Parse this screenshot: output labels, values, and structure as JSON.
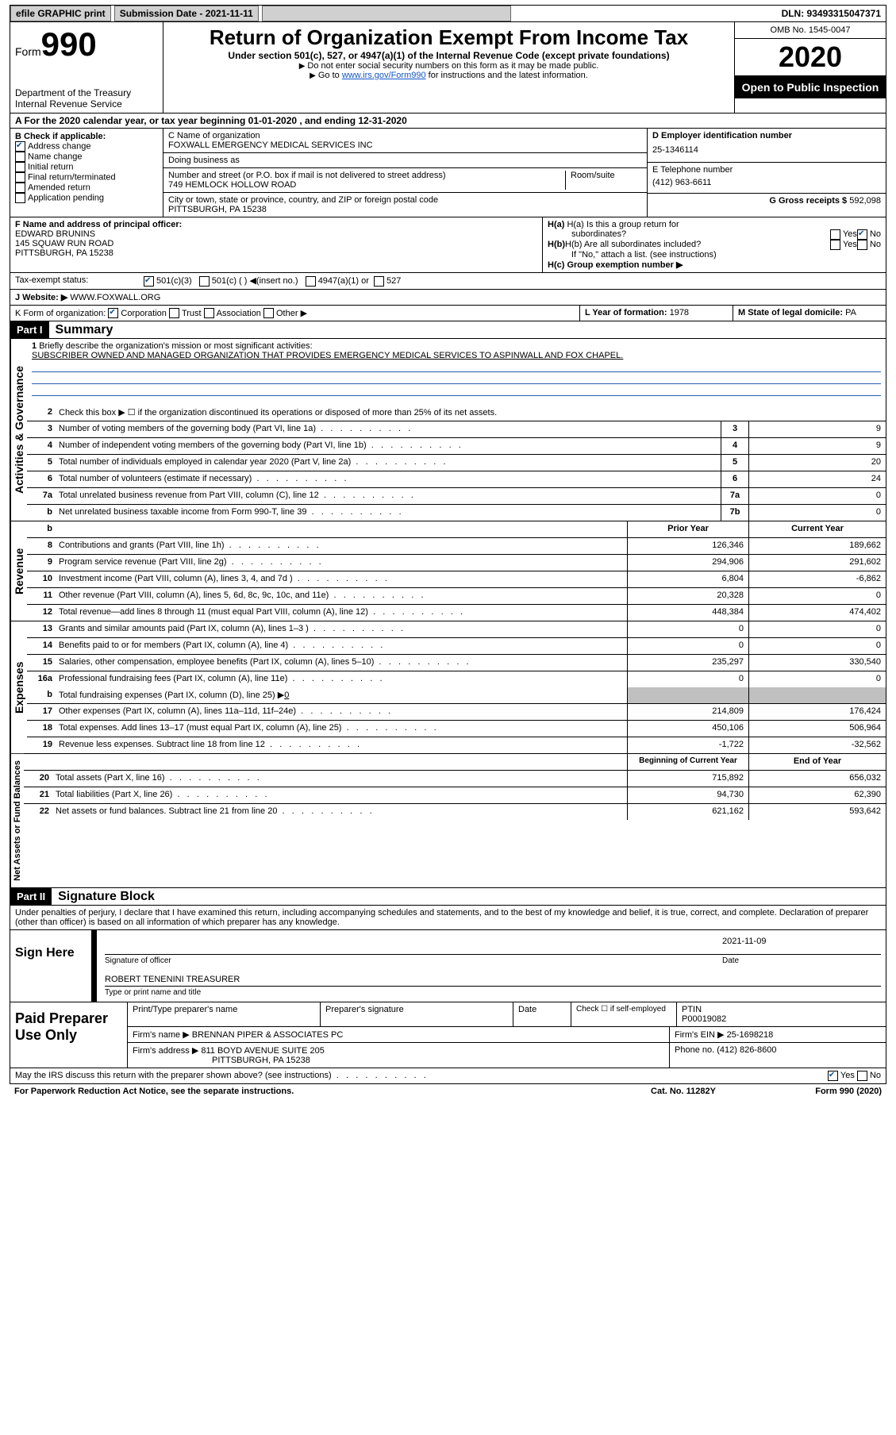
{
  "topbar": {
    "efile": "efile GRAPHIC print",
    "submission": "Submission Date - 2021-11-11",
    "dln": "DLN: 93493315047371"
  },
  "header": {
    "form_prefix": "Form",
    "form_num": "990",
    "dept": "Department of the Treasury\nInternal Revenue Service",
    "title": "Return of Organization Exempt From Income Tax",
    "subtitle": "Under section 501(c), 527, or 4947(a)(1) of the Internal Revenue Code (except private foundations)",
    "note1": "Do not enter social security numbers on this form as it may be made public.",
    "note2_prefix": "Go to ",
    "note2_link": "www.irs.gov/Form990",
    "note2_suffix": " for instructions and the latest information.",
    "omb": "OMB No. 1545-0047",
    "year": "2020",
    "inspection": "Open to Public Inspection"
  },
  "sectionA": "A For the 2020 calendar year, or tax year beginning 01-01-2020    , and ending 12-31-2020",
  "boxB": {
    "label": "B Check if applicable:",
    "items": [
      {
        "label": "Address change",
        "checked": true
      },
      {
        "label": "Name change",
        "checked": false
      },
      {
        "label": "Initial return",
        "checked": false
      },
      {
        "label": "Final return/terminated",
        "checked": false
      },
      {
        "label": "Amended return",
        "checked": false
      },
      {
        "label": "Application pending",
        "checked": false
      }
    ]
  },
  "boxC": {
    "name_label": "C Name of organization",
    "name_value": "FOXWALL EMERGENCY MEDICAL SERVICES INC",
    "dba_label": "Doing business as",
    "dba_value": "",
    "street_label": "Number and street (or P.O. box if mail is not delivered to street address)",
    "room_label": "Room/suite",
    "street_value": "749 HEMLOCK HOLLOW ROAD",
    "city_label": "City or town, state or province, country, and ZIP or foreign postal code",
    "city_value": "PITTSBURGH, PA  15238"
  },
  "boxD": {
    "label": "D Employer identification number",
    "value": "25-1346114"
  },
  "boxE": {
    "label": "E Telephone number",
    "value": "(412) 963-6611"
  },
  "boxG": {
    "label": "G Gross receipts $",
    "value": "592,098"
  },
  "boxF": {
    "label": "F Name and address of principal officer:",
    "name": "EDWARD BRUNINS",
    "addr1": "145 SQUAW RUN ROAD",
    "addr2": "PITTSBURGH, PA  15238"
  },
  "boxH": {
    "a_label": "H(a)  Is this a group return for",
    "a_label2": "subordinates?",
    "a_yes": "Yes",
    "a_no": "No",
    "b_label": "H(b)  Are all subordinates included?",
    "b_yes": "Yes",
    "b_no": "No",
    "b_note": "If \"No,\" attach a list. (see instructions)",
    "c_label": "H(c)  Group exemption number ▶"
  },
  "taxExempt": {
    "label": "Tax-exempt status:",
    "c3": "501(c)(3)",
    "c_other": "501(c) (  ) ◀(insert no.)",
    "a4947": "4947(a)(1) or",
    "s527": "527"
  },
  "boxJ": {
    "label": "J    Website: ▶",
    "value": "WWW.FOXWALL.ORG"
  },
  "boxK": {
    "label": "K Form of organization:",
    "corp": "Corporation",
    "trust": "Trust",
    "assoc": "Association",
    "other": "Other ▶"
  },
  "boxL": {
    "label": "L Year of formation:",
    "value": "1978"
  },
  "boxM": {
    "label": "M State of legal domicile:",
    "value": "PA"
  },
  "part1": {
    "hdr": "Part I",
    "title": "Summary"
  },
  "governance": {
    "label": "Activities & Governance",
    "l1": {
      "num": "1",
      "txt": "Briefly describe the organization's mission or most significant activities:",
      "val": "SUBSCRIBER OWNED AND MANAGED ORGANIZATION THAT PROVIDES EMERGENCY MEDICAL SERVICES TO ASPINWALL AND FOX CHAPEL."
    },
    "l2": {
      "num": "2",
      "txt": "Check this box ▶ ☐  if the organization discontinued its operations or disposed of more than 25% of its net assets."
    },
    "rows": [
      {
        "num": "3",
        "txt": "Number of voting members of the governing body (Part VI, line 1a)",
        "box": "3",
        "val": "9"
      },
      {
        "num": "4",
        "txt": "Number of independent voting members of the governing body (Part VI, line 1b)",
        "box": "4",
        "val": "9"
      },
      {
        "num": "5",
        "txt": "Total number of individuals employed in calendar year 2020 (Part V, line 2a)",
        "box": "5",
        "val": "20"
      },
      {
        "num": "6",
        "txt": "Total number of volunteers (estimate if necessary)",
        "box": "6",
        "val": "24"
      },
      {
        "num": "7a",
        "txt": "Total unrelated business revenue from Part VIII, column (C), line 12",
        "box": "7a",
        "val": "0"
      },
      {
        "num": "b",
        "txt": "Net unrelated business taxable income from Form 990-T, line 39",
        "box": "7b",
        "val": "0"
      }
    ]
  },
  "revenue": {
    "label": "Revenue",
    "header": {
      "prior": "Prior Year",
      "current": "Current Year"
    },
    "rows": [
      {
        "num": "8",
        "txt": "Contributions and grants (Part VIII, line 1h)",
        "prior": "126,346",
        "current": "189,662"
      },
      {
        "num": "9",
        "txt": "Program service revenue (Part VIII, line 2g)",
        "prior": "294,906",
        "current": "291,602"
      },
      {
        "num": "10",
        "txt": "Investment income (Part VIII, column (A), lines 3, 4, and 7d )",
        "prior": "6,804",
        "current": "-6,862"
      },
      {
        "num": "11",
        "txt": "Other revenue (Part VIII, column (A), lines 5, 6d, 8c, 9c, 10c, and 11e)",
        "prior": "20,328",
        "current": "0"
      },
      {
        "num": "12",
        "txt": "Total revenue—add lines 8 through 11 (must equal Part VIII, column (A), line 12)",
        "prior": "448,384",
        "current": "474,402"
      }
    ]
  },
  "expenses": {
    "label": "Expenses",
    "rows": [
      {
        "num": "13",
        "txt": "Grants and similar amounts paid (Part IX, column (A), lines 1–3 )",
        "prior": "0",
        "current": "0"
      },
      {
        "num": "14",
        "txt": "Benefits paid to or for members (Part IX, column (A), line 4)",
        "prior": "0",
        "current": "0"
      },
      {
        "num": "15",
        "txt": "Salaries, other compensation, employee benefits (Part IX, column (A), lines 5–10)",
        "prior": "235,297",
        "current": "330,540"
      },
      {
        "num": "16a",
        "txt": "Professional fundraising fees (Part IX, column (A), line 11e)",
        "prior": "0",
        "current": "0"
      }
    ],
    "l16b": {
      "num": "b",
      "txt": "Total fundraising expenses (Part IX, column (D), line 25) ▶",
      "val": "0"
    },
    "rows2": [
      {
        "num": "17",
        "txt": "Other expenses (Part IX, column (A), lines 11a–11d, 11f–24e)",
        "prior": "214,809",
        "current": "176,424"
      },
      {
        "num": "18",
        "txt": "Total expenses. Add lines 13–17 (must equal Part IX, column (A), line 25)",
        "prior": "450,106",
        "current": "506,964"
      },
      {
        "num": "19",
        "txt": "Revenue less expenses. Subtract line 18 from line 12",
        "prior": "-1,722",
        "current": "-32,562"
      }
    ]
  },
  "netassets": {
    "label": "Net Assets or Fund Balances",
    "header": {
      "begin": "Beginning of Current Year",
      "end": "End of Year"
    },
    "rows": [
      {
        "num": "20",
        "txt": "Total assets (Part X, line 16)",
        "begin": "715,892",
        "end": "656,032"
      },
      {
        "num": "21",
        "txt": "Total liabilities (Part X, line 26)",
        "begin": "94,730",
        "end": "62,390"
      },
      {
        "num": "22",
        "txt": "Net assets or fund balances. Subtract line 21 from line 20",
        "begin": "621,162",
        "end": "593,642"
      }
    ]
  },
  "part2": {
    "hdr": "Part II",
    "title": "Signature Block",
    "penalty": "Under penalties of perjury, I declare that I have examined this return, including accompanying schedules and statements, and to the best of my knowledge and belief, it is true, correct, and complete. Declaration of preparer (other than officer) is based on all information of which preparer has any knowledge."
  },
  "sign": {
    "left": "Sign Here",
    "officer_sig": "Signature of officer",
    "date": "2021-11-09",
    "date_label": "Date",
    "officer_name": "ROBERT TENENINI TREASURER",
    "type_label": "Type or print name and title"
  },
  "prep": {
    "left": "Paid Preparer Use Only",
    "h_name": "Print/Type preparer's name",
    "h_sig": "Preparer's signature",
    "h_date": "Date",
    "h_self": "Check ☐ if self-employed",
    "h_ptin": "PTIN",
    "ptin": "P00019082",
    "firm_label": "Firm's name    ▶",
    "firm": "BRENNAN PIPER & ASSOCIATES PC",
    "ein_label": "Firm's EIN ▶",
    "ein": "25-1698218",
    "addr_label": "Firm's address ▶",
    "addr1": "811 BOYD AVENUE SUITE 205",
    "addr2": "PITTSBURGH, PA  15238",
    "phone_label": "Phone no.",
    "phone": "(412) 826-8600"
  },
  "discuss": {
    "txt": "May the IRS discuss this return with the preparer shown above? (see instructions)",
    "yes": "Yes",
    "no": "No"
  },
  "footer": {
    "left": "For Paperwork Reduction Act Notice, see the separate instructions.",
    "mid": "Cat. No. 11282Y",
    "right": "Form 990 (2020)"
  }
}
